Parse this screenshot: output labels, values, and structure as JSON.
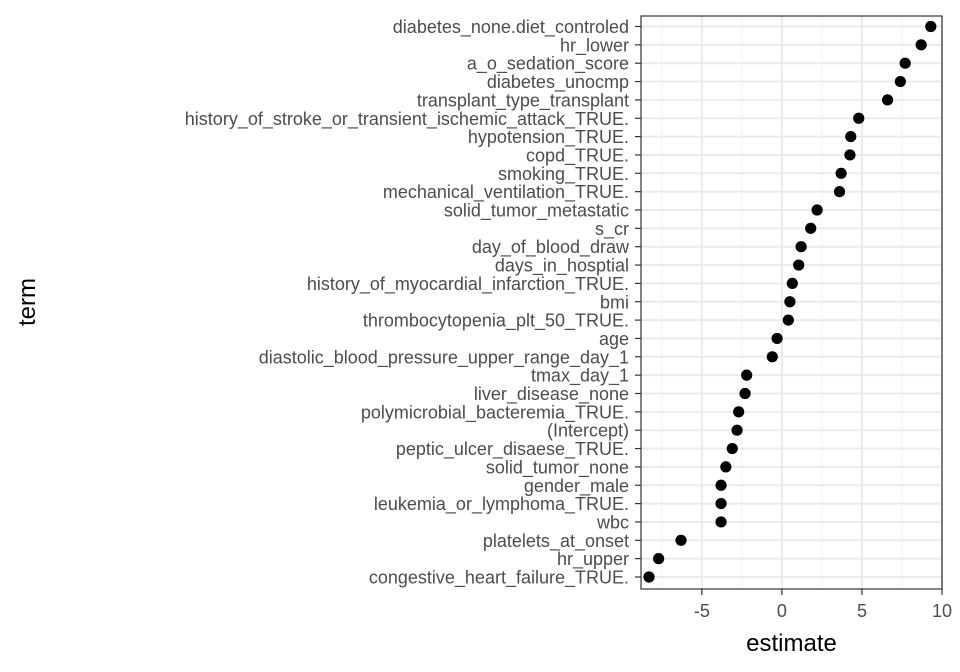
{
  "chart_data": {
    "type": "scatter",
    "title": "",
    "xlabel": "estimate",
    "ylabel": "term",
    "xlim": [
      -8.8,
      10.0
    ],
    "xticks": [
      -5,
      0,
      5,
      10
    ],
    "xtick_labels": [
      "-5",
      "0",
      "5",
      "10"
    ],
    "grid": true,
    "point_color": "#000000",
    "points": [
      {
        "term": "diabetes_none.diet_controled",
        "estimate": 9.3
      },
      {
        "term": "hr_lower",
        "estimate": 8.7
      },
      {
        "term": "a_o_sedation_score",
        "estimate": 7.7
      },
      {
        "term": "diabetes_unocmp",
        "estimate": 7.4
      },
      {
        "term": "transplant_type_transplant",
        "estimate": 6.6
      },
      {
        "term": "history_of_stroke_or_transient_ischemic_attack_TRUE.",
        "estimate": 4.8
      },
      {
        "term": "hypotension_TRUE.",
        "estimate": 4.3
      },
      {
        "term": "copd_TRUE.",
        "estimate": 4.25
      },
      {
        "term": "smoking_TRUE.",
        "estimate": 3.7
      },
      {
        "term": "mechanical_ventilation_TRUE.",
        "estimate": 3.6
      },
      {
        "term": "solid_tumor_metastatic",
        "estimate": 2.2
      },
      {
        "term": "s_cr",
        "estimate": 1.8
      },
      {
        "term": "day_of_blood_draw",
        "estimate": 1.2
      },
      {
        "term": "days_in_hosptial",
        "estimate": 1.05
      },
      {
        "term": "history_of_myocardial_infarction_TRUE.",
        "estimate": 0.65
      },
      {
        "term": "bmi",
        "estimate": 0.5
      },
      {
        "term": "thrombocytopenia_plt_50_TRUE.",
        "estimate": 0.4
      },
      {
        "term": "age",
        "estimate": -0.3
      },
      {
        "term": "diastolic_blood_pressure_upper_range_day_1",
        "estimate": -0.6
      },
      {
        "term": "tmax_day_1",
        "estimate": -2.2
      },
      {
        "term": "liver_disease_none",
        "estimate": -2.3
      },
      {
        "term": "polymicrobial_bacteremia_TRUE.",
        "estimate": -2.7
      },
      {
        "term": "(Intercept)",
        "estimate": -2.8
      },
      {
        "term": "peptic_ulcer_disaese_TRUE.",
        "estimate": -3.1
      },
      {
        "term": "solid_tumor_none",
        "estimate": -3.5
      },
      {
        "term": "gender_male",
        "estimate": -3.8
      },
      {
        "term": "leukemia_or_lymphoma_TRUE.",
        "estimate": -3.8
      },
      {
        "term": "wbc",
        "estimate": -3.8
      },
      {
        "term": "platelets_at_onset",
        "estimate": -6.3
      },
      {
        "term": "hr_upper",
        "estimate": -7.7
      },
      {
        "term": "congestive_heart_failure_TRUE.",
        "estimate": -8.3
      }
    ]
  }
}
